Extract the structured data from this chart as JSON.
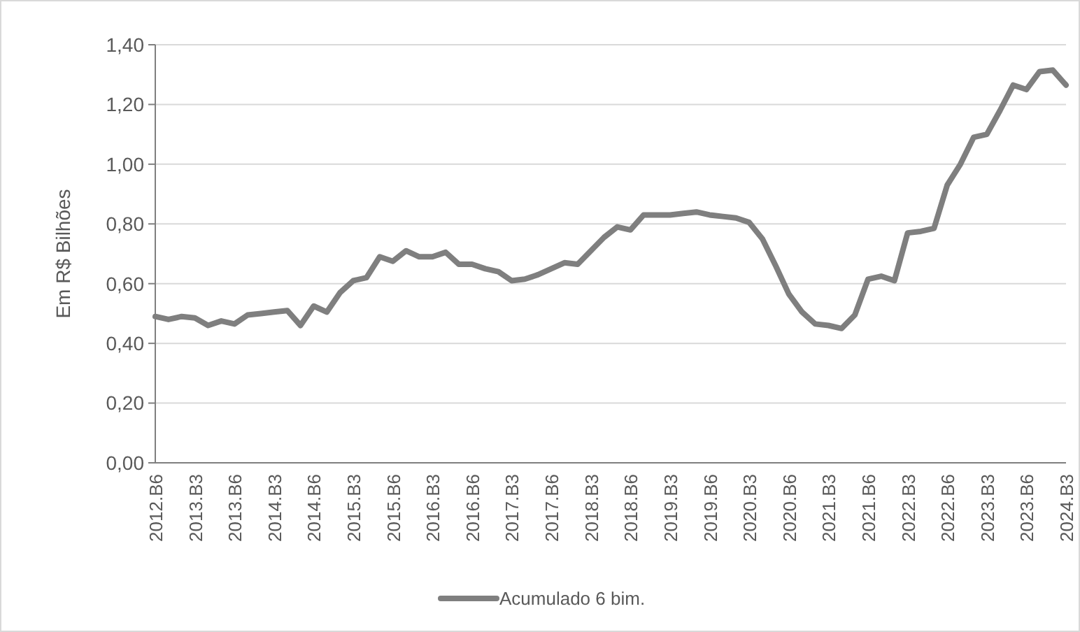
{
  "chart_data": {
    "type": "line",
    "ylabel": "Em R$ Bilhões",
    "categories": [
      "2012.B6",
      null,
      null,
      "2013.B3",
      null,
      null,
      "2013.B6",
      null,
      null,
      "2014.B3",
      null,
      null,
      "2014.B6",
      null,
      null,
      "2015.B3",
      null,
      null,
      "2015.B6",
      null,
      null,
      "2016.B3",
      null,
      null,
      "2016.B6",
      null,
      null,
      "2017.B3",
      null,
      null,
      "2017.B6",
      null,
      null,
      "2018.B3",
      null,
      null,
      "2018.B6",
      null,
      null,
      "2019.B3",
      null,
      null,
      "2019.B6",
      null,
      null,
      "2020.B3",
      null,
      null,
      "2020.B6",
      null,
      null,
      "2021.B3",
      null,
      null,
      "2021.B6",
      null,
      null,
      "2022.B3",
      null,
      null,
      "2022.B6",
      null,
      null,
      "2023.B3",
      null,
      null,
      "2023.B6",
      null,
      null,
      "2024.B3"
    ],
    "series": [
      {
        "name": "Acumulado 6 bim.",
        "color": "#7f7f7f",
        "values": [
          0.49,
          0.48,
          0.49,
          0.485,
          0.46,
          0.475,
          0.465,
          0.495,
          0.5,
          0.505,
          0.51,
          0.46,
          0.525,
          0.505,
          0.57,
          0.61,
          0.62,
          0.69,
          0.675,
          0.71,
          0.69,
          0.69,
          0.705,
          0.665,
          0.665,
          0.65,
          0.64,
          0.61,
          0.615,
          0.63,
          0.65,
          0.67,
          0.665,
          0.71,
          0.755,
          0.79,
          0.78,
          0.83,
          0.83,
          0.83,
          0.835,
          0.84,
          0.83,
          0.825,
          0.82,
          0.805,
          0.75,
          0.66,
          0.565,
          0.505,
          0.465,
          0.46,
          0.45,
          0.495,
          0.615,
          0.625,
          0.61,
          0.77,
          0.775,
          0.785,
          0.93,
          1.0,
          1.09,
          1.1,
          1.18,
          1.265,
          1.25,
          1.31,
          1.315,
          1.265
        ]
      }
    ],
    "ylim": [
      0,
      1.4
    ],
    "yticks": [
      {
        "value": 0,
        "label": "0,00"
      },
      {
        "value": 0.2,
        "label": "0,20"
      },
      {
        "value": 0.4,
        "label": "0,40"
      },
      {
        "value": 0.6,
        "label": "0,60"
      },
      {
        "value": 0.8,
        "label": "0,80"
      },
      {
        "value": 1,
        "label": "1,00"
      },
      {
        "value": 1.2,
        "label": "1,20"
      },
      {
        "value": 1.4,
        "label": "1,40"
      }
    ],
    "grid": "y",
    "legend": "bottom",
    "marker": "none",
    "line_style": "solid"
  }
}
